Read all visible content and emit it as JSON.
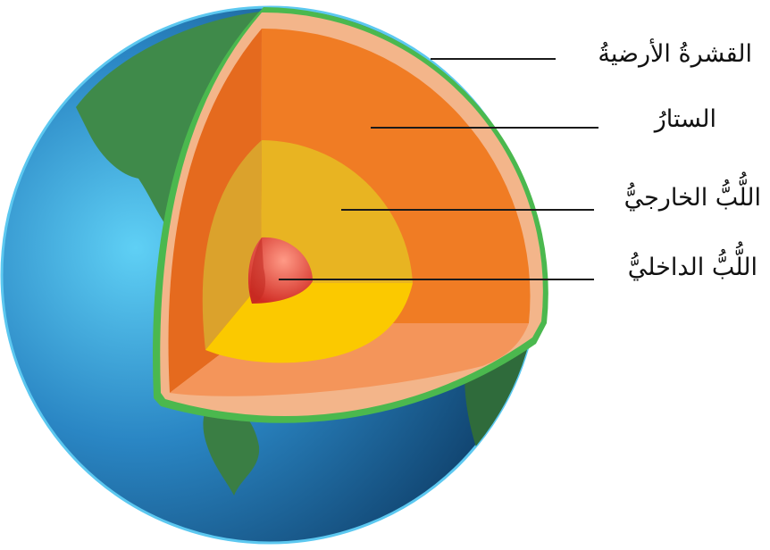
{
  "layers": [
    {
      "key": "crust",
      "label": "القشرةُ الأرضيةُ"
    },
    {
      "key": "mantle",
      "label": "الستارُ"
    },
    {
      "key": "outer_core",
      "label": "اللُّبُّ الخارجيُّ"
    },
    {
      "key": "inner_core",
      "label": "اللُّبُّ الداخليُّ"
    }
  ],
  "colors": {
    "ocean": "#2a86c4",
    "land": "#3f8a4a",
    "crust_outline": "#4bb84e",
    "crust": "#f3b58a",
    "mantle": "#f07c24",
    "outer_core": "#e8b422",
    "inner_core": "#e23c2c",
    "leader_line": "#1a1a1a"
  }
}
